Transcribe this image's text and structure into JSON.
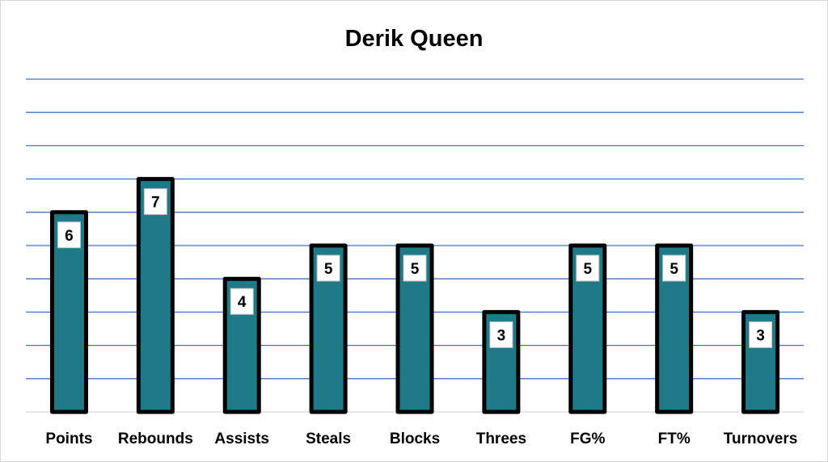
{
  "chart_data": {
    "type": "bar",
    "title": "Derik Queen",
    "xlabel": "",
    "ylabel": "",
    "categories": [
      "Points",
      "Rebounds",
      "Assists",
      "Steals",
      "Blocks",
      "Threes",
      "FG%",
      "FT%",
      "Turnovers"
    ],
    "values": [
      6,
      7,
      4,
      5,
      5,
      3,
      5,
      5,
      3
    ],
    "ylim": [
      0,
      10
    ],
    "y_tick_labels_shown": false,
    "grid": true,
    "legend": "none",
    "data_labels": true
  },
  "colors": {
    "bar_fill": "#1f7a87",
    "bar_outline": "#000000",
    "gridline": "#4472c4",
    "baseline": "#d9d9d9",
    "label_box": "#ffffff"
  }
}
